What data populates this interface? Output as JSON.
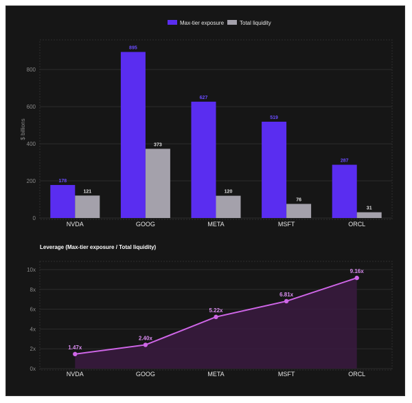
{
  "colors": {
    "exposure": "#5a2df0",
    "liquidity": "#a4a1ab",
    "leverage_line": "#cf66e8",
    "leverage_fill": "#3a1a40"
  },
  "chart_data": [
    {
      "type": "bar",
      "categories": [
        "NVDA",
        "GOOG",
        "META",
        "MSFT",
        "ORCL"
      ],
      "series": [
        {
          "name": "Max-tier exposure",
          "values": [
            178,
            895,
            627,
            519,
            287
          ],
          "labels": [
            "178",
            "895",
            "627",
            "519",
            "287"
          ]
        },
        {
          "name": "Total liquidity",
          "values": [
            121,
            373,
            120,
            76,
            31
          ],
          "labels": [
            "121",
            "373",
            "120",
            "76",
            "31"
          ]
        }
      ],
      "ylabel": "$ billions",
      "ylim": [
        0,
        960
      ],
      "yticks": [
        0,
        200,
        400,
        600,
        800
      ],
      "ytick_labels": [
        "0",
        "200",
        "400",
        "600",
        "800"
      ],
      "legend": "top-center",
      "grid": true
    },
    {
      "type": "area",
      "title": "Leverage (Max-tier exposure / Total liquidity)",
      "categories": [
        "NVDA",
        "GOOG",
        "META",
        "MSFT",
        "ORCL"
      ],
      "values": [
        1.47,
        2.4,
        5.22,
        6.81,
        9.16
      ],
      "labels": [
        "1.47x",
        "2.40x",
        "5.22x",
        "6.81x",
        "9.16x"
      ],
      "ylim": [
        0,
        10
      ],
      "yticks": [
        0,
        2,
        4,
        6,
        8,
        10
      ],
      "ytick_labels": [
        "0x",
        "2x",
        "4x",
        "6x",
        "8x",
        "10x"
      ],
      "grid": true
    }
  ]
}
